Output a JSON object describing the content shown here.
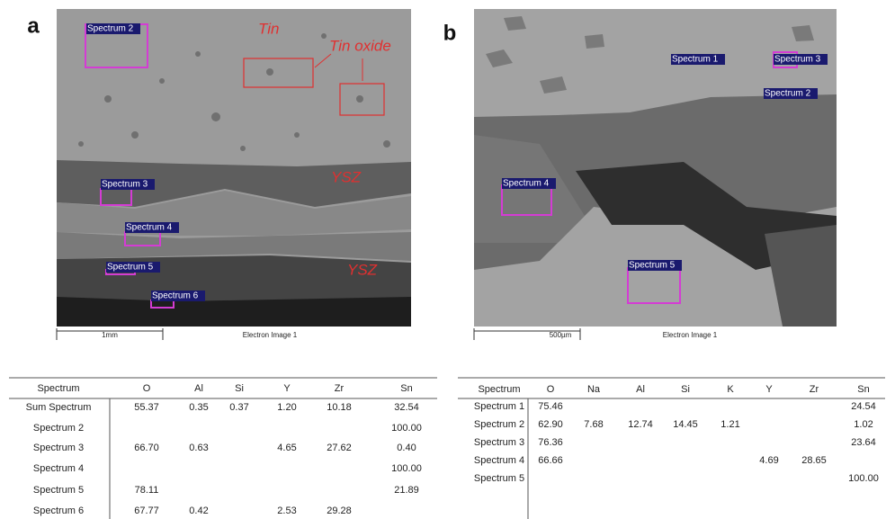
{
  "panels": [
    {
      "label": "a",
      "annotations": [
        "Tin",
        "Tin oxide",
        "YSZ",
        "YSZ"
      ],
      "spectra": [
        "Spectrum 2",
        "Spectrum 3",
        "Spectrum 4",
        "Spectrum 5",
        "Spectrum 6"
      ],
      "scale_bar": "1mm",
      "image_caption": "Electron Image 1",
      "table": {
        "header": [
          "Spectrum",
          "O",
          "Al",
          "Si",
          "Y",
          "Zr",
          "Sn"
        ],
        "rows": [
          [
            "Sum Spectrum",
            "55.37",
            "0.35",
            "0.37",
            "1.20",
            "10.18",
            "32.54"
          ],
          [
            "Spectrum 2",
            null,
            null,
            null,
            null,
            null,
            "100.00"
          ],
          [
            "Spectrum 3",
            "66.70",
            "0.63",
            null,
            "4.65",
            "27.62",
            "0.40"
          ],
          [
            "Spectrum 4",
            null,
            null,
            null,
            null,
            null,
            "100.00"
          ],
          [
            "Spectrum 5",
            "78.11",
            null,
            null,
            null,
            null,
            "21.89"
          ],
          [
            "Spectrum 6",
            "67.77",
            "0.42",
            null,
            "2.53",
            "29.28",
            null
          ]
        ]
      }
    },
    {
      "label": "b",
      "annotations": [],
      "spectra": [
        "Spectrum 1",
        "Spectrum 3",
        "Spectrum 2",
        "Spectrum 4",
        "Spectrum 5"
      ],
      "scale_bar": "500µm",
      "image_caption": "Electron Image 1",
      "table": {
        "header": [
          "Spectrum",
          "O",
          "Na",
          "Al",
          "Si",
          "K",
          "Y",
          "Zr",
          "Sn"
        ],
        "rows": [
          [
            "Spectrum 1",
            "75.46",
            null,
            null,
            null,
            null,
            null,
            null,
            "24.54"
          ],
          [
            "Spectrum 2",
            "62.90",
            "7.68",
            "12.74",
            "14.45",
            "1.21",
            null,
            null,
            "1.02"
          ],
          [
            "Spectrum 3",
            "76.36",
            null,
            null,
            null,
            null,
            null,
            null,
            "23.64"
          ],
          [
            "Spectrum 4",
            "66.66",
            null,
            null,
            null,
            null,
            "4.69",
            "28.65",
            null
          ],
          [
            "Spectrum 5",
            null,
            null,
            null,
            null,
            null,
            null,
            null,
            "100.00"
          ]
        ]
      }
    }
  ]
}
